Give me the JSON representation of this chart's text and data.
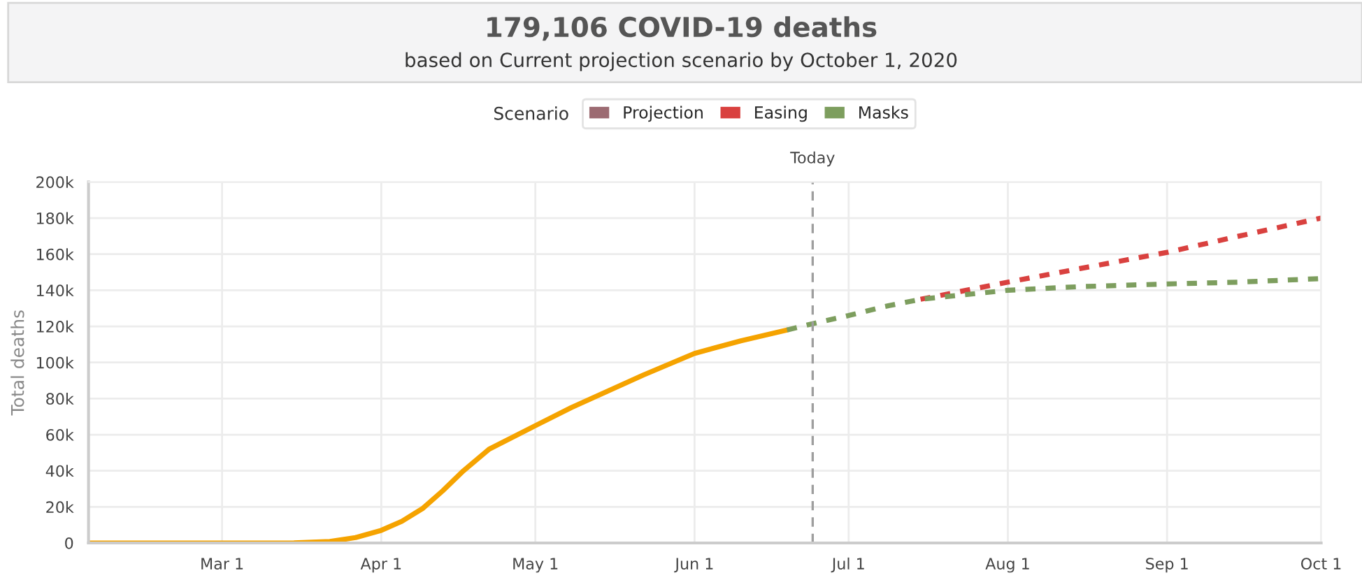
{
  "chart_data": {
    "type": "line",
    "title": "179,106 COVID-19 deaths",
    "subtitle": "based on Current projection scenario by October 1, 2020",
    "ylabel": "Total deaths",
    "legend_title": "Scenario",
    "xlim": [
      "2020-02-04",
      "2020-10-01"
    ],
    "xticks": [
      {
        "value": "2020-03-01",
        "label": "Mar 1"
      },
      {
        "value": "2020-04-01",
        "label": "Apr 1"
      },
      {
        "value": "2020-05-01",
        "label": "May 1"
      },
      {
        "value": "2020-06-01",
        "label": "Jun 1"
      },
      {
        "value": "2020-07-01",
        "label": "Jul 1"
      },
      {
        "value": "2020-08-01",
        "label": "Aug 1"
      },
      {
        "value": "2020-09-01",
        "label": "Sep 1"
      },
      {
        "value": "2020-10-01",
        "label": "Oct 1"
      }
    ],
    "ylim": [
      0,
      200000
    ],
    "yticks": [
      0,
      {
        "value": 20000,
        "label": "20k"
      },
      {
        "value": 40000,
        "label": "40k"
      },
      {
        "value": 60000,
        "label": "60k"
      },
      {
        "value": 80000,
        "label": "80k"
      },
      {
        "value": 100000,
        "label": "100k"
      },
      {
        "value": 120000,
        "label": "120k"
      },
      {
        "value": 140000,
        "label": "140k"
      },
      {
        "value": 160000,
        "label": "160k"
      },
      {
        "value": 180000,
        "label": "180k"
      },
      {
        "value": 200000,
        "label": "200k"
      }
    ],
    "grid": true,
    "legend": "top",
    "ref_lines": [
      {
        "axis": "x",
        "value": "2020-06-24",
        "label": "Today",
        "color": "#9e9e9e",
        "line_style": "dashed"
      }
    ],
    "series": [
      {
        "color": "#f5a300",
        "line_style": "solid",
        "x": [
          "2020-02-04",
          "2020-03-01",
          "2020-03-15",
          "2020-03-22",
          "2020-03-27",
          "2020-04-01",
          "2020-04-05",
          "2020-04-09",
          "2020-04-13",
          "2020-04-17",
          "2020-04-22",
          "2020-05-01",
          "2020-05-08",
          "2020-05-15",
          "2020-05-22",
          "2020-06-01",
          "2020-06-10",
          "2020-06-19"
        ],
        "values": [
          0,
          0,
          100,
          800,
          3000,
          7000,
          12000,
          19000,
          29000,
          40000,
          52000,
          65000,
          75000,
          84000,
          93000,
          105000,
          112000,
          118000
        ]
      },
      {
        "name": "Projection",
        "color": "#9c6b72"
      },
      {
        "name": "Easing",
        "color": "#d9413f",
        "line_style": "dotted",
        "x": [
          "2020-07-15",
          "2020-08-01",
          "2020-08-15",
          "2020-09-01",
          "2020-09-15",
          "2020-10-01"
        ],
        "values": [
          135000,
          144500,
          152000,
          161000,
          170000,
          180000
        ]
      },
      {
        "name": "Masks",
        "color": "#7d9e5e",
        "line_style": "dotted",
        "x": [
          "2020-06-19",
          "2020-06-24",
          "2020-07-01",
          "2020-07-08",
          "2020-07-15",
          "2020-08-01",
          "2020-08-15",
          "2020-09-01",
          "2020-09-15",
          "2020-10-01"
        ],
        "values": [
          118000,
          121500,
          126000,
          131000,
          135000,
          140000,
          142000,
          143500,
          144500,
          146500
        ]
      }
    ]
  }
}
